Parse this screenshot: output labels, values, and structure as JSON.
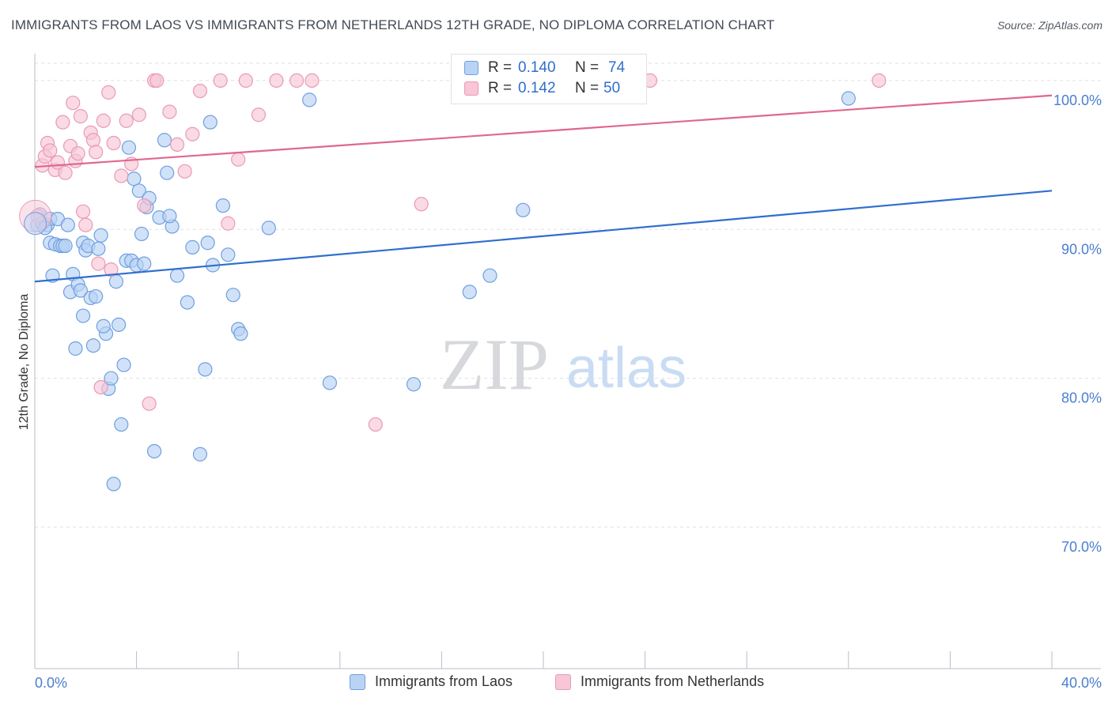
{
  "header": {
    "title": "IMMIGRANTS FROM LAOS VS IMMIGRANTS FROM NETHERLANDS 12TH GRADE, NO DIPLOMA CORRELATION CHART",
    "source": "Source: ZipAtlas.com"
  },
  "watermark": {
    "zip": "ZIP",
    "atlas": "atlas"
  },
  "legend_top": {
    "rows": [
      {
        "r_label": "R =",
        "r_value": "0.140",
        "n_label": "N =",
        "n_value": "74"
      },
      {
        "r_label": "R =",
        "r_value": "0.142",
        "n_label": "N =",
        "n_value": "50"
      }
    ]
  },
  "legend_bottom": {
    "items": [
      "Immigrants from Laos",
      "Immigrants from Netherlands"
    ]
  },
  "colors": {
    "laos_fill": "#b9d3f5",
    "laos_stroke": "#6f9fe0",
    "laos_line": "#2f6ecf",
    "neth_fill": "#f8c6d6",
    "neth_stroke": "#e99ab5",
    "neth_line": "#e06790",
    "tick_label": "#4a7fcf",
    "grid": "#dde0e5"
  },
  "chart_data": {
    "type": "scatter",
    "title": "IMMIGRANTS FROM LAOS VS IMMIGRANTS FROM NETHERLANDS 12TH GRADE, NO DIPLOMA CORRELATION CHART",
    "xlabel": "",
    "ylabel": "12th Grade, No Diploma",
    "xlim": [
      0,
      40
    ],
    "ylim": [
      60.5,
      101.8
    ],
    "x_tick_labels": [
      "0.0%",
      "40.0%"
    ],
    "y_ticks": [
      70,
      80,
      90,
      100
    ],
    "y_tick_labels": [
      "70.0%",
      "80.0%",
      "90.0%",
      "100.0%"
    ],
    "grid": true,
    "legend_position": "bottom",
    "series": [
      {
        "name": "Immigrants from Laos",
        "R": 0.14,
        "N": 74,
        "trend": {
          "x": [
            0,
            40
          ],
          "y": [
            86.5,
            92.6
          ]
        },
        "points": [
          [
            0.1,
            90.3
          ],
          [
            0.2,
            91.0
          ],
          [
            0.3,
            90.4
          ],
          [
            0.5,
            90.3
          ],
          [
            0.6,
            90.7
          ],
          [
            0.6,
            89.1
          ],
          [
            0.7,
            86.9
          ],
          [
            0.8,
            89.0
          ],
          [
            0.9,
            90.7
          ],
          [
            1.0,
            88.9
          ],
          [
            1.1,
            88.9
          ],
          [
            1.3,
            90.3
          ],
          [
            1.4,
            85.8
          ],
          [
            1.5,
            87.0
          ],
          [
            1.6,
            82.0
          ],
          [
            1.7,
            86.3
          ],
          [
            1.8,
            85.9
          ],
          [
            1.9,
            89.1
          ],
          [
            2.0,
            88.6
          ],
          [
            2.1,
            88.9
          ],
          [
            2.2,
            85.4
          ],
          [
            2.3,
            82.2
          ],
          [
            2.4,
            85.5
          ],
          [
            2.6,
            89.6
          ],
          [
            2.8,
            83.0
          ],
          [
            2.9,
            79.3
          ],
          [
            3.1,
            72.9
          ],
          [
            3.2,
            86.5
          ],
          [
            3.3,
            83.6
          ],
          [
            3.4,
            76.9
          ],
          [
            3.5,
            80.9
          ],
          [
            3.6,
            87.9
          ],
          [
            3.8,
            87.9
          ],
          [
            3.9,
            93.4
          ],
          [
            4.0,
            87.6
          ],
          [
            4.1,
            92.6
          ],
          [
            4.2,
            89.7
          ],
          [
            4.4,
            91.5
          ],
          [
            4.5,
            92.1
          ],
          [
            4.7,
            75.1
          ],
          [
            4.9,
            90.8
          ],
          [
            5.1,
            96.0
          ],
          [
            5.2,
            93.8
          ],
          [
            5.4,
            90.2
          ],
          [
            5.6,
            86.9
          ],
          [
            6.0,
            85.1
          ],
          [
            6.2,
            88.8
          ],
          [
            6.5,
            74.9
          ],
          [
            6.7,
            80.6
          ],
          [
            6.9,
            97.2
          ],
          [
            7.0,
            87.6
          ],
          [
            7.4,
            91.6
          ],
          [
            7.6,
            88.3
          ],
          [
            7.8,
            85.6
          ],
          [
            8.0,
            83.3
          ],
          [
            8.1,
            83.0
          ],
          [
            9.2,
            90.1
          ],
          [
            10.8,
            98.7
          ],
          [
            11.6,
            79.7
          ],
          [
            14.9,
            79.6
          ],
          [
            17.1,
            85.8
          ],
          [
            17.9,
            86.9
          ],
          [
            19.2,
            91.3
          ],
          [
            32.0,
            98.8
          ],
          [
            0.4,
            90.1
          ],
          [
            1.2,
            88.9
          ],
          [
            2.5,
            88.7
          ],
          [
            3.0,
            80.0
          ],
          [
            4.3,
            87.7
          ],
          [
            5.3,
            90.9
          ],
          [
            6.8,
            89.1
          ],
          [
            2.7,
            83.5
          ],
          [
            3.7,
            95.5
          ],
          [
            1.9,
            84.2
          ]
        ]
      },
      {
        "name": "Immigrants from Netherlands",
        "R": 0.142,
        "N": 50,
        "trend": {
          "x": [
            0,
            40
          ],
          "y": [
            94.2,
            99.0
          ]
        },
        "points": [
          [
            0.1,
            90.9
          ],
          [
            0.3,
            94.3
          ],
          [
            0.4,
            94.9
          ],
          [
            0.5,
            95.8
          ],
          [
            0.6,
            95.3
          ],
          [
            0.8,
            94.0
          ],
          [
            0.9,
            94.5
          ],
          [
            1.1,
            97.2
          ],
          [
            1.2,
            93.8
          ],
          [
            1.4,
            95.6
          ],
          [
            1.5,
            98.5
          ],
          [
            1.6,
            94.6
          ],
          [
            1.7,
            95.1
          ],
          [
            1.8,
            97.6
          ],
          [
            1.9,
            91.2
          ],
          [
            2.0,
            90.3
          ],
          [
            2.2,
            96.5
          ],
          [
            2.3,
            96.0
          ],
          [
            2.4,
            95.2
          ],
          [
            2.5,
            87.7
          ],
          [
            2.7,
            97.3
          ],
          [
            2.9,
            99.2
          ],
          [
            3.0,
            87.3
          ],
          [
            3.1,
            95.8
          ],
          [
            3.4,
            93.6
          ],
          [
            3.6,
            97.3
          ],
          [
            3.8,
            94.4
          ],
          [
            4.1,
            97.7
          ],
          [
            4.3,
            91.6
          ],
          [
            4.5,
            78.3
          ],
          [
            4.7,
            100.0
          ],
          [
            4.8,
            100.0
          ],
          [
            5.3,
            97.9
          ],
          [
            5.6,
            95.7
          ],
          [
            5.9,
            93.9
          ],
          [
            6.2,
            96.4
          ],
          [
            6.5,
            99.3
          ],
          [
            7.3,
            100.0
          ],
          [
            7.6,
            90.4
          ],
          [
            8.0,
            94.7
          ],
          [
            8.3,
            100.0
          ],
          [
            8.8,
            97.7
          ],
          [
            9.5,
            100.0
          ],
          [
            10.3,
            100.0
          ],
          [
            10.9,
            100.0
          ],
          [
            13.4,
            76.9
          ],
          [
            15.2,
            91.7
          ],
          [
            24.2,
            100.0
          ],
          [
            33.2,
            100.0
          ],
          [
            2.6,
            79.4
          ]
        ]
      }
    ]
  }
}
